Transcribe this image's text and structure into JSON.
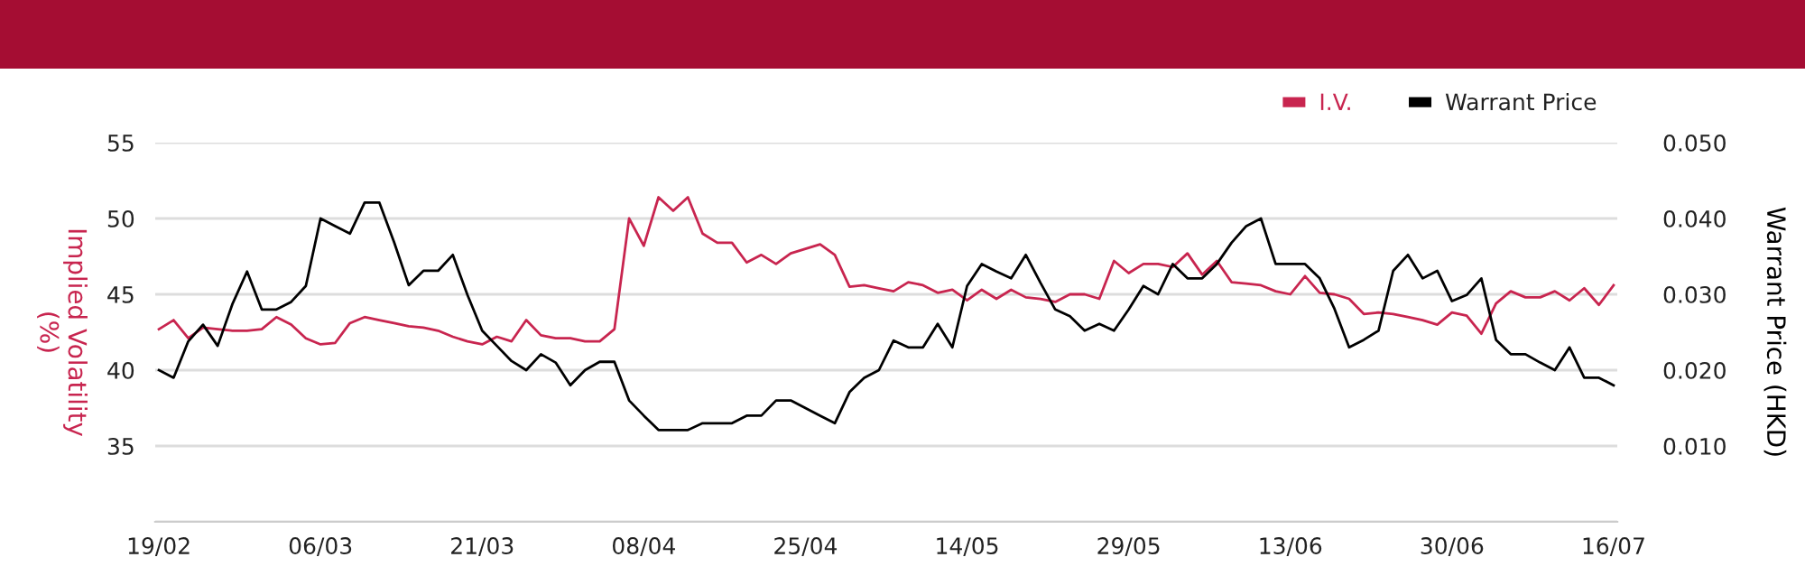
{
  "chart_data": {
    "type": "line",
    "categories": [
      "19/02",
      null,
      null,
      null,
      null,
      null,
      null,
      null,
      null,
      null,
      null,
      "06/03",
      null,
      null,
      null,
      null,
      null,
      null,
      null,
      null,
      null,
      null,
      "21/03",
      null,
      null,
      null,
      null,
      null,
      null,
      null,
      null,
      null,
      null,
      "08/04",
      null,
      null,
      null,
      null,
      null,
      null,
      null,
      null,
      null,
      null,
      "25/04",
      null,
      null,
      null,
      null,
      null,
      null,
      null,
      null,
      null,
      null,
      "14/05",
      null,
      null,
      null,
      null,
      null,
      null,
      null,
      null,
      null,
      null,
      "29/05",
      null,
      null,
      null,
      null,
      null,
      null,
      null,
      null,
      null,
      null,
      "13/06",
      null,
      null,
      null,
      null,
      null,
      null,
      null,
      null,
      null,
      null,
      "30/06",
      null,
      null,
      null,
      null,
      null,
      null,
      null,
      null,
      null,
      null,
      "16/07"
    ],
    "series": [
      {
        "name": "I.V.",
        "color": "#c8254f",
        "values": [
          42.7,
          43.3,
          42.1,
          42.8,
          42.7,
          42.6,
          42.6,
          42.7,
          43.5,
          43.0,
          42.1,
          41.7,
          41.8,
          43.1,
          43.5,
          43.3,
          43.1,
          42.9,
          42.8,
          42.6,
          42.2,
          41.9,
          41.7,
          42.2,
          41.9,
          43.3,
          42.3,
          42.1,
          42.1,
          41.9,
          41.9,
          42.7,
          50.0,
          48.2,
          51.4,
          50.5,
          51.4,
          49.0,
          48.4,
          48.4,
          47.1,
          47.6,
          47.0,
          47.7,
          48.0,
          48.3,
          47.6,
          45.5,
          45.6,
          45.4,
          45.2,
          45.8,
          45.6,
          45.1,
          45.3,
          44.6,
          45.3,
          44.7,
          45.3,
          44.8,
          44.7,
          44.5,
          45.0,
          45.0,
          44.7,
          47.2,
          46.4,
          47.0,
          47.0,
          46.8,
          47.7,
          46.3,
          47.2,
          45.8,
          45.7,
          45.6,
          45.2,
          45.0,
          46.2,
          45.1,
          45.0,
          44.7,
          43.7,
          43.8,
          43.7,
          43.5,
          43.3,
          43.0,
          43.8,
          43.6,
          42.4,
          44.4,
          45.2,
          44.8,
          44.8,
          45.2,
          44.6,
          45.4,
          44.3,
          45.6
        ]
      },
      {
        "name": "Warrant Price",
        "color": "#000000",
        "axis": "y2",
        "values": [
          0.02,
          0.019,
          0.0238,
          0.026,
          0.0232,
          0.0287,
          0.033,
          0.028,
          0.028,
          0.029,
          0.0311,
          0.04,
          0.039,
          0.038,
          0.0421,
          0.0421,
          0.0369,
          0.0312,
          0.0331,
          0.0331,
          0.0352,
          0.0299,
          0.0252,
          0.0232,
          0.0212,
          0.02,
          0.0221,
          0.021,
          0.018,
          0.02,
          0.0211,
          0.0211,
          0.016,
          0.014,
          0.0121,
          0.0121,
          0.0121,
          0.013,
          0.013,
          0.013,
          0.014,
          0.014,
          0.016,
          0.016,
          0.015,
          0.014,
          0.013,
          0.0171,
          0.019,
          0.02,
          0.0239,
          0.023,
          0.023,
          0.0261,
          0.023,
          0.0311,
          0.034,
          0.033,
          0.0321,
          0.0352,
          0.0315,
          0.028,
          0.0271,
          0.0252,
          0.0261,
          0.0252,
          0.028,
          0.0311,
          0.03,
          0.034,
          0.0321,
          0.0321,
          0.034,
          0.0368,
          0.039,
          0.04,
          0.034,
          0.034,
          0.034,
          0.0321,
          0.0281,
          0.023,
          0.024,
          0.0252,
          0.0331,
          0.0352,
          0.0321,
          0.0331,
          0.0291,
          0.0299,
          0.0321,
          0.024,
          0.0221,
          0.0221,
          0.021,
          0.02,
          0.023,
          0.019,
          0.019,
          0.018
        ]
      }
    ],
    "ylabel": "Implied Volatility\n(%)",
    "y2label": "Warrant Price (HKD)",
    "ylim": [
      30,
      55
    ],
    "yticks": [
      {
        "value": 30,
        "label": null
      },
      35,
      40,
      45,
      50,
      55
    ],
    "y2lim": [
      0,
      0.05
    ],
    "y2ticks": [
      {
        "value": 0,
        "label": null
      },
      {
        "value": 0.01,
        "label": "0.010"
      },
      {
        "value": 0.02,
        "label": "0.020"
      },
      {
        "value": 0.03,
        "label": "0.030"
      },
      {
        "value": 0.04,
        "label": "0.040"
      },
      {
        "value": 0.05,
        "label": "0.050"
      }
    ],
    "grid": "y",
    "legend": "top right",
    "marker": "none",
    "line_style": "solid"
  }
}
